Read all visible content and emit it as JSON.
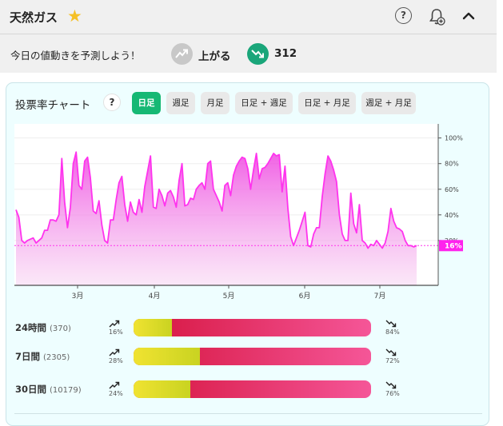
{
  "header": {
    "title": "天然ガス"
  },
  "predict": {
    "question": "今日の値動きを予測しよう！",
    "up_label": "上がる",
    "down_count": "312"
  },
  "chart_section": {
    "title": "投票率チャート",
    "help_label": "?",
    "tabs": [
      {
        "label": "日足",
        "active": true
      },
      {
        "label": "週足",
        "active": false
      },
      {
        "label": "月足",
        "active": false
      },
      {
        "label": "日足 + 週足",
        "active": false
      },
      {
        "label": "日足 + 月足",
        "active": false
      },
      {
        "label": "週足 + 月足",
        "active": false
      }
    ]
  },
  "chart_data": {
    "type": "area",
    "series_color": "#ff33ee",
    "y_ticks": [
      "100%",
      "80%",
      "60%",
      "40%",
      "20%"
    ],
    "y_tick_values": [
      100,
      80,
      60,
      40,
      20
    ],
    "ylim": [
      -15,
      111
    ],
    "x_ticks": [
      "3月",
      "4月",
      "5月",
      "6月",
      "7月"
    ],
    "current_label": "16%",
    "current_value": 16,
    "values": [
      44,
      38,
      20,
      18,
      20,
      21,
      22,
      18,
      20,
      22,
      28,
      28,
      36,
      36,
      35,
      40,
      84,
      50,
      30,
      46,
      80,
      89,
      63,
      60,
      82,
      85,
      69,
      43,
      41,
      51,
      32,
      20,
      18,
      36,
      36,
      52,
      65,
      70,
      48,
      35,
      50,
      42,
      40,
      52,
      42,
      62,
      74,
      86,
      46,
      45,
      60,
      55,
      47,
      57,
      59,
      54,
      46,
      67,
      80,
      47,
      48,
      53,
      52,
      60,
      63,
      65,
      60,
      80,
      82,
      60,
      55,
      50,
      43,
      63,
      65,
      55,
      71,
      78,
      82,
      85,
      84,
      76,
      60,
      75,
      88,
      68,
      76,
      77,
      80,
      84,
      88,
      86,
      87,
      58,
      78,
      45,
      23,
      16,
      22,
      28,
      35,
      42,
      16,
      15,
      25,
      30,
      30,
      54,
      72,
      86,
      82,
      75,
      66,
      40,
      25,
      20,
      20,
      57,
      33,
      26,
      48,
      20,
      18,
      14,
      17,
      16,
      20,
      17,
      14,
      18,
      27,
      45,
      35,
      30,
      29,
      27,
      20,
      16,
      16,
      15,
      16
    ]
  },
  "votes": [
    {
      "label": "24時間",
      "count": "(370)",
      "up_pct": "16%",
      "down_pct": "84%",
      "up_value": 16
    },
    {
      "label": "7日間",
      "count": "(2305)",
      "up_pct": "28%",
      "down_pct": "72%",
      "up_value": 28
    },
    {
      "label": "30日間",
      "count": "(10179)",
      "up_pct": "24%",
      "down_pct": "76%",
      "up_value": 24
    }
  ]
}
